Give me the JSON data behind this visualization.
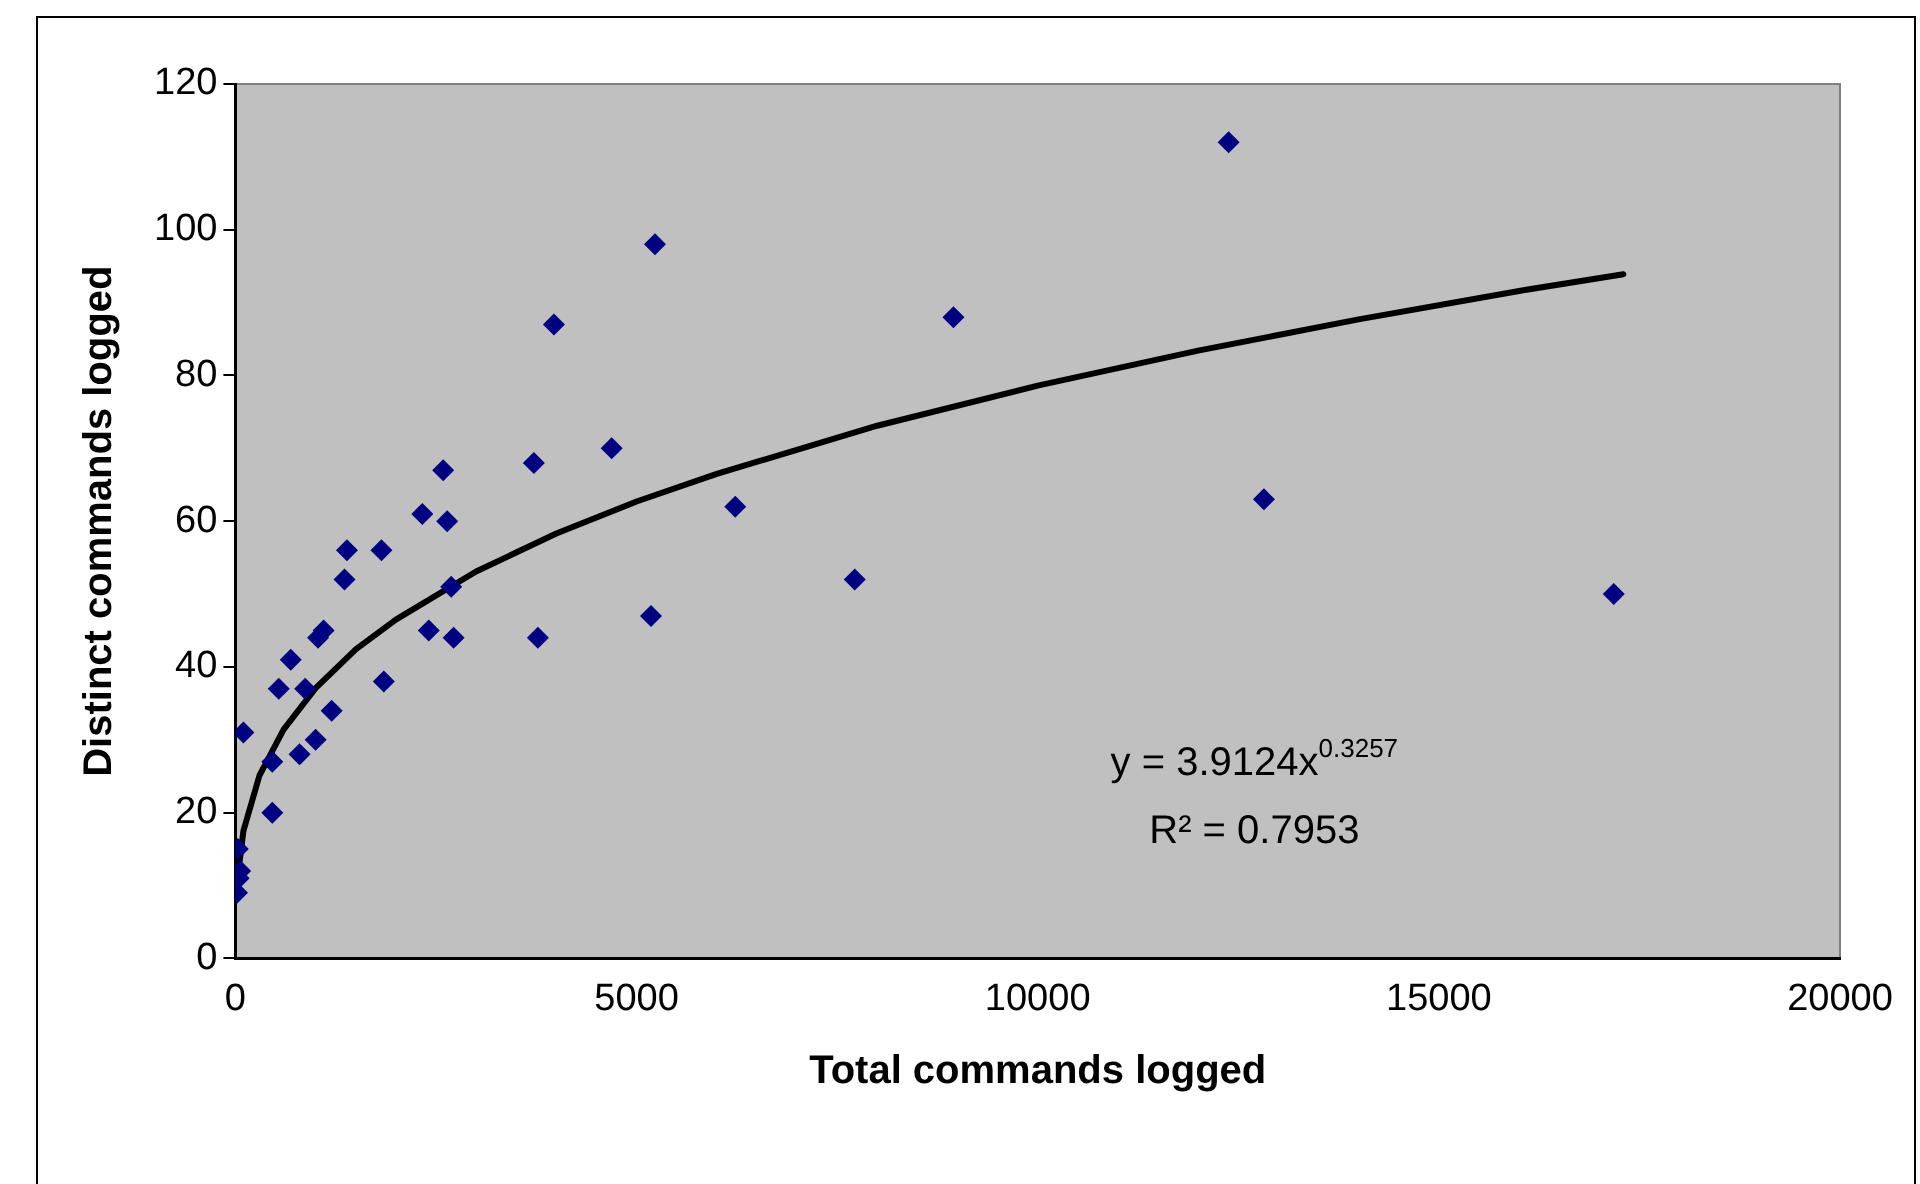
{
  "chart_data": {
    "type": "scatter",
    "xlabel": "Total commands logged",
    "ylabel": "Distinct commands logged",
    "xlim": [
      0,
      20000
    ],
    "xticks": [
      0,
      5000,
      10000,
      15000,
      20000
    ],
    "ylim": [
      0,
      120
    ],
    "yticks": [
      0,
      20,
      40,
      60,
      80,
      100,
      120
    ],
    "grid": false,
    "legend": false,
    "series": [
      {
        "type": "scatter",
        "color": "#000080",
        "marker": "diamond",
        "x": [
          20,
          40,
          60,
          30,
          100,
          460,
          460,
          540,
          690,
          870,
          800,
          1000,
          1200,
          1030,
          1100,
          1360,
          1390,
          1820,
          1850,
          2330,
          2590,
          2640,
          2410,
          2690,
          2720,
          3720,
          3770,
          3970,
          4690,
          5180,
          5230,
          6230,
          7720,
          8950,
          12380,
          12820,
          17180
        ],
        "values": [
          9,
          11,
          12,
          15,
          31,
          20,
          27,
          37,
          41,
          37,
          28,
          30,
          34,
          44,
          45,
          52,
          56,
          56,
          38,
          61,
          67,
          60,
          45,
          51,
          44,
          68,
          44,
          87,
          70,
          47,
          98,
          62,
          52,
          88,
          112,
          63,
          50
        ]
      },
      {
        "type": "line",
        "color": "#000000",
        "marker": "none",
        "line_style": "solid",
        "x": [
          20,
          100,
          300,
          600,
          1000,
          1500,
          2000,
          3000,
          4000,
          5000,
          6000,
          8000,
          10000,
          12000,
          14000,
          16000,
          17300
        ],
        "values": [
          10.4,
          17.5,
          25.1,
          31.4,
          37.1,
          42.4,
          46.5,
          53.1,
          58.3,
          62.7,
          66.5,
          73.1,
          78.6,
          83.4,
          87.7,
          91.6,
          93.9
        ]
      }
    ],
    "annotations": [
      "y = 3.9124x$^{0.3257}$",
      "R² = 0.7953"
    ]
  }
}
